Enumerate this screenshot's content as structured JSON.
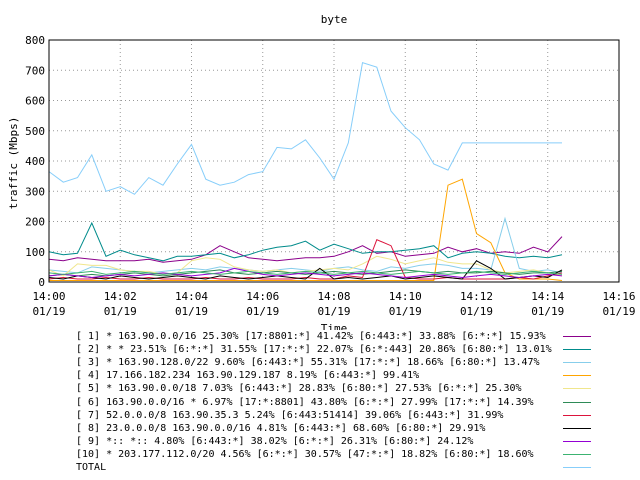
{
  "chart_data": {
    "type": "line",
    "title": "byte",
    "xlabel": "Time",
    "ylabel": "traffic (Mbps)",
    "ylim": [
      0,
      800
    ],
    "yticks": [
      "0",
      "100",
      "200",
      "300",
      "400",
      "500",
      "600",
      "700",
      "800"
    ],
    "xticks": [
      {
        "time": "14:00",
        "date": "01/19"
      },
      {
        "time": "14:02",
        "date": "01/19"
      },
      {
        "time": "14:04",
        "date": "01/19"
      },
      {
        "time": "14:06",
        "date": "01/19"
      },
      {
        "time": "14:08",
        "date": "01/19"
      },
      {
        "time": "14:10",
        "date": "01/19"
      },
      {
        "time": "14:12",
        "date": "01/19"
      },
      {
        "time": "14:14",
        "date": "01/19"
      },
      {
        "time": "14:16",
        "date": "01/19"
      }
    ],
    "x_minutes": [
      0,
      0.4,
      0.8,
      1.2,
      1.6,
      2.0,
      2.4,
      2.8,
      3.2,
      3.6,
      4.0,
      4.4,
      4.8,
      5.2,
      5.6,
      6.0,
      6.4,
      6.8,
      7.2,
      7.6,
      8.0,
      8.4,
      8.8,
      9.2,
      9.6,
      10.0,
      10.4,
      10.8,
      11.2,
      11.6,
      12.0,
      12.4,
      12.8,
      13.2,
      13.6,
      14.0,
      14.4
    ],
    "legend": "bottom",
    "series": [
      {
        "name": "[ 1] * 163.90.0.0/16 25.30% [17:8801:*] 41.42% [6:443:*] 33.88% [6:*:*] 15.93%",
        "color": "#8b008b",
        "values": [
          75,
          70,
          80,
          75,
          70,
          70,
          70,
          75,
          65,
          70,
          75,
          90,
          120,
          100,
          80,
          75,
          70,
          75,
          80,
          80,
          85,
          100,
          120,
          95,
          100,
          85,
          90,
          95,
          115,
          100,
          110,
          95,
          100,
          95,
          115,
          100,
          150
        ]
      },
      {
        "name": "[ 2] * * 23.51% [6:*:*] 31.55% [17:*:*] 22.07% [6:*:443] 20.86% [6:80:*] 13.01%",
        "color": "#008b8b",
        "values": [
          100,
          90,
          95,
          195,
          85,
          105,
          90,
          80,
          70,
          85,
          85,
          90,
          95,
          80,
          90,
          105,
          115,
          120,
          135,
          105,
          125,
          110,
          95,
          100,
          100,
          105,
          110,
          120,
          80,
          95,
          100,
          95,
          85,
          80,
          85,
          80,
          90
        ]
      },
      {
        "name": "[ 3] * 163.90.128.0/22 9.60% [6:443:*] 55.31% [17:*:*] 18.66% [6:80:*] 13.47%",
        "color": "#87ceeb",
        "values": [
          40,
          35,
          30,
          50,
          45,
          40,
          35,
          30,
          35,
          40,
          45,
          40,
          50,
          45,
          40,
          35,
          40,
          45,
          40,
          35,
          45,
          50,
          40,
          35,
          50,
          45,
          55,
          60,
          55,
          45,
          45,
          40,
          210,
          45,
          35,
          40,
          30
        ]
      },
      {
        "name": "[ 4] 17.166.182.234 163.90.129.187 8.19% [6:443:*] 99.41%",
        "color": "#ffa500",
        "values": [
          5,
          5,
          5,
          5,
          5,
          5,
          5,
          5,
          5,
          5,
          5,
          5,
          5,
          5,
          5,
          5,
          5,
          5,
          5,
          5,
          5,
          5,
          5,
          5,
          5,
          5,
          5,
          5,
          320,
          340,
          160,
          130,
          30,
          10,
          10,
          10,
          5
        ]
      },
      {
        "name": "[ 5] * 163.90.0.0/18 7.03% [6:443:*] 28.83% [6:80:*] 27.53% [6:*:*] 25.30%",
        "color": "#f0e68c",
        "values": [
          40,
          20,
          60,
          55,
          55,
          40,
          35,
          35,
          25,
          30,
          70,
          80,
          75,
          50,
          40,
          35,
          40,
          30,
          35,
          40,
          45,
          40,
          60,
          85,
          75,
          60,
          70,
          80,
          65,
          60,
          60,
          40,
          30,
          35,
          40,
          30,
          20
        ]
      },
      {
        "name": "[ 6] 163.90.0.0/16 * 6.97% [17:*:8801] 43.80% [6:*:*] 27.99% [17:*:*] 14.39%",
        "color": "#2e8b57",
        "values": [
          20,
          25,
          20,
          25,
          20,
          25,
          30,
          25,
          20,
          25,
          30,
          35,
          40,
          30,
          25,
          30,
          35,
          30,
          25,
          30,
          35,
          30,
          25,
          30,
          35,
          40,
          35,
          30,
          35,
          30,
          30,
          35,
          30,
          25,
          30,
          30,
          35
        ]
      },
      {
        "name": "[ 7] 52.0.0.0/8 163.90.35.3 5.24% [6:443:51414] 39.06% [6:443:*] 31.99%",
        "color": "#dc143c",
        "values": [
          10,
          15,
          10,
          10,
          15,
          10,
          10,
          15,
          10,
          10,
          10,
          15,
          10,
          10,
          15,
          10,
          10,
          10,
          15,
          10,
          10,
          20,
          15,
          140,
          120,
          15,
          10,
          10,
          15,
          10,
          10,
          10,
          10,
          15,
          10,
          20,
          30
        ]
      },
      {
        "name": "[ 8] 23.0.0.0/8 163.90.0.0/16 4.81% [6:443:*] 68.60% [6:80:*] 29.91%",
        "color": "#000000",
        "values": [
          15,
          10,
          20,
          15,
          10,
          20,
          15,
          10,
          15,
          20,
          15,
          10,
          20,
          15,
          10,
          15,
          20,
          15,
          10,
          45,
          10,
          15,
          10,
          15,
          20,
          10,
          15,
          20,
          15,
          10,
          70,
          45,
          10,
          15,
          20,
          15,
          40
        ]
      },
      {
        "name": "[ 9] *:: *:: 4.80% [6:443:*] 38.02% [6:*:*] 26.31% [6:80:*] 24.12%",
        "color": "#9400d3",
        "values": [
          20,
          25,
          20,
          15,
          20,
          25,
          20,
          25,
          30,
          25,
          20,
          25,
          30,
          45,
          35,
          25,
          20,
          25,
          30,
          25,
          20,
          25,
          30,
          25,
          20,
          15,
          20,
          25,
          20,
          15,
          20,
          25,
          20,
          15,
          20,
          25,
          20
        ]
      },
      {
        "name": "[10] * 203.177.112.0/20 4.56% [6:*:*] 30.57% [47:*:*] 18.82% [6:80:*] 18.60%",
        "color": "#3cb371",
        "values": [
          30,
          25,
          30,
          35,
          25,
          30,
          35,
          30,
          25,
          30,
          35,
          30,
          25,
          30,
          35,
          30,
          25,
          30,
          35,
          30,
          25,
          30,
          35,
          30,
          25,
          30,
          35,
          30,
          25,
          30,
          35,
          30,
          25,
          30,
          35,
          30,
          25
        ]
      },
      {
        "name": "TOTAL",
        "color": "#87cefa",
        "values": [
          365,
          330,
          345,
          420,
          300,
          315,
          290,
          345,
          320,
          390,
          455,
          340,
          320,
          330,
          355,
          365,
          445,
          440,
          470,
          410,
          340,
          460,
          725,
          710,
          565,
          510,
          470,
          390,
          370,
          460,
          460,
          460,
          460,
          460,
          460,
          460,
          460
        ]
      }
    ]
  }
}
